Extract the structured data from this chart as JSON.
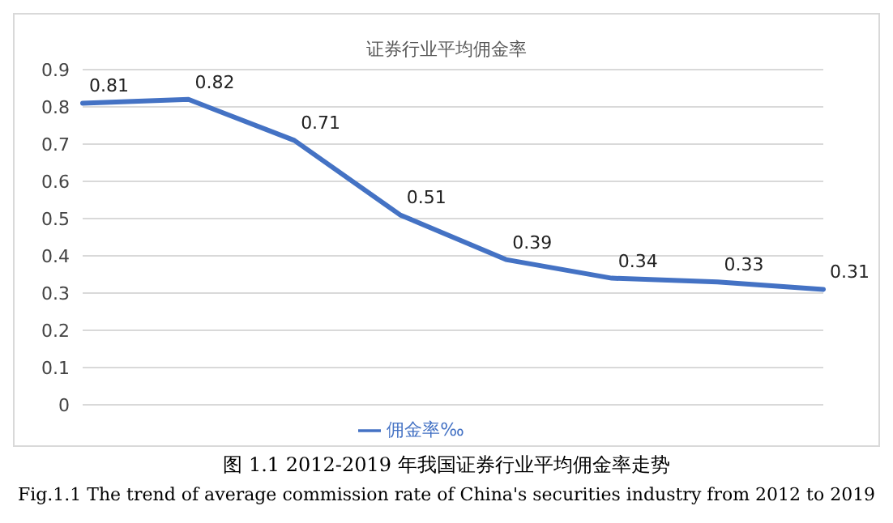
{
  "chart_data": {
    "type": "line",
    "title": "证券行业平均佣金率",
    "categories": [
      null,
      null,
      null,
      null,
      null,
      null,
      null,
      null
    ],
    "series": [
      {
        "name": "佣金率‰",
        "color": "#4472c4",
        "values": [
          0.81,
          0.82,
          0.71,
          0.51,
          0.39,
          0.34,
          0.33,
          0.31
        ]
      }
    ],
    "ylim": [
      0,
      0.9
    ],
    "yticks": [
      0,
      0.1,
      0.2,
      0.3,
      0.4,
      0.5,
      0.6,
      0.7,
      0.8,
      0.9
    ],
    "grid": "y",
    "legend": "bottom",
    "marker": "none",
    "data_labels": true,
    "annotations": [
      "图 1.1 2012-2019 年我国证券行业平均佣金率走势",
      "Fig.1.1 The trend of average commission rate of China's securities industry from 2012 to 2019"
    ]
  }
}
